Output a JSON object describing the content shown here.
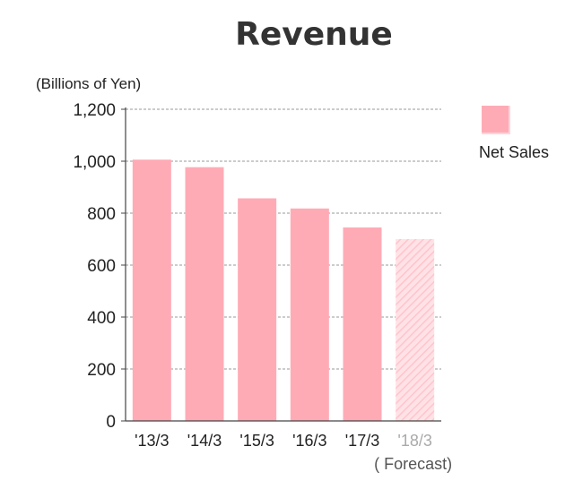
{
  "chart_data": {
    "type": "bar",
    "title": "Revenue",
    "unit_label": "(Billions of Yen)",
    "categories": [
      "'13/3",
      "'14/3",
      "'15/3",
      "'16/3",
      "'17/3",
      "'18/3"
    ],
    "category_notes": [
      "",
      "",
      "",
      "",
      "",
      "( Forecast)"
    ],
    "series": [
      {
        "name": "Net Sales",
        "values": [
          1006,
          977,
          857,
          818,
          745,
          700
        ],
        "forecast": [
          false,
          false,
          false,
          false,
          false,
          true
        ]
      }
    ],
    "ylim": [
      0,
      1200
    ],
    "yticks": [
      "0",
      "200",
      "400",
      "600",
      "800",
      "1,000",
      "1,200"
    ],
    "ytick_values": [
      0,
      200,
      400,
      600,
      800,
      1000,
      1200
    ],
    "grid": true,
    "legend_position": "right",
    "colors": {
      "bar": "#ffabb6",
      "forecast_bar": "#ffd3d9",
      "forecast_label": "#aaaaaa",
      "grid": "#999999",
      "axis": "#444444"
    }
  }
}
